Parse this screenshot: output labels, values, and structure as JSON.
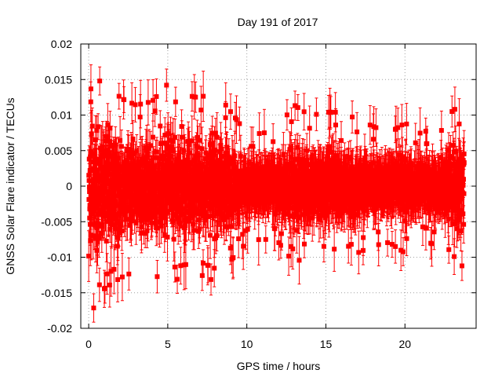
{
  "chart_data": {
    "type": "scatter",
    "title": "Day 191 of 2017",
    "xlabel": "GPS time / hours",
    "ylabel": "GNSS Solar Flare indicator / TECUs",
    "xlim": [
      -0.5,
      24.5
    ],
    "ylim": [
      -0.02,
      0.02
    ],
    "x_ticks": [
      0,
      5,
      10,
      15,
      20
    ],
    "x_tick_labels": [
      "0",
      "5",
      "10",
      "15",
      "20"
    ],
    "y_ticks": [
      -0.02,
      -0.015,
      -0.01,
      -0.005,
      0,
      0.005,
      0.01,
      0.015,
      0.02
    ],
    "y_tick_labels": [
      "-0.02",
      "-0.015",
      "-0.01",
      "-0.005",
      "0",
      "0.005",
      "0.01",
      "0.015",
      "0.02"
    ],
    "grid": true,
    "marker": "filled-square",
    "error_bars": true,
    "color": "#ff0000",
    "series": [
      {
        "x_start": 0.0,
        "x_end": 23.75,
        "sampling_interval_hours": 0.0083,
        "mean": 0.0,
        "error_bar_half_width_typical": 0.003,
        "envelope": [
          {
            "x": 0.0,
            "y_min": -0.0175,
            "y_max": 0.0125
          },
          {
            "x": 1.0,
            "y_min": -0.0135,
            "y_max": 0.0145
          },
          {
            "x": 2.0,
            "y_min": -0.012,
            "y_max": 0.0115
          },
          {
            "x": 3.0,
            "y_min": -0.011,
            "y_max": 0.0105
          },
          {
            "x": 4.0,
            "y_min": -0.0115,
            "y_max": 0.011
          },
          {
            "x": 5.0,
            "y_min": -0.0125,
            "y_max": 0.0135
          },
          {
            "x": 6.0,
            "y_min": -0.012,
            "y_max": 0.012
          },
          {
            "x": 7.0,
            "y_min": -0.0115,
            "y_max": 0.0115
          },
          {
            "x": 8.0,
            "y_min": -0.0125,
            "y_max": 0.0125
          },
          {
            "x": 9.0,
            "y_min": -0.0095,
            "y_max": 0.0095
          },
          {
            "x": 10.0,
            "y_min": -0.007,
            "y_max": 0.0065
          },
          {
            "x": 11.0,
            "y_min": -0.0065,
            "y_max": 0.0065
          },
          {
            "x": 12.0,
            "y_min": -0.007,
            "y_max": 0.0075
          },
          {
            "x": 13.0,
            "y_min": -0.01,
            "y_max": 0.0105
          },
          {
            "x": 14.0,
            "y_min": -0.0085,
            "y_max": 0.009
          },
          {
            "x": 15.0,
            "y_min": -0.0095,
            "y_max": 0.0095
          },
          {
            "x": 16.0,
            "y_min": -0.01,
            "y_max": 0.0095
          },
          {
            "x": 17.0,
            "y_min": -0.0085,
            "y_max": 0.0085
          },
          {
            "x": 18.0,
            "y_min": -0.0075,
            "y_max": 0.0075
          },
          {
            "x": 19.0,
            "y_min": -0.007,
            "y_max": 0.0065
          },
          {
            "x": 20.0,
            "y_min": -0.0085,
            "y_max": 0.008
          },
          {
            "x": 21.0,
            "y_min": -0.0065,
            "y_max": 0.0065
          },
          {
            "x": 22.0,
            "y_min": -0.0075,
            "y_max": 0.0075
          },
          {
            "x": 23.0,
            "y_min": -0.0105,
            "y_max": 0.0115
          },
          {
            "x": 23.75,
            "y_min": -0.0125,
            "y_max": 0.0125
          }
        ]
      }
    ]
  }
}
